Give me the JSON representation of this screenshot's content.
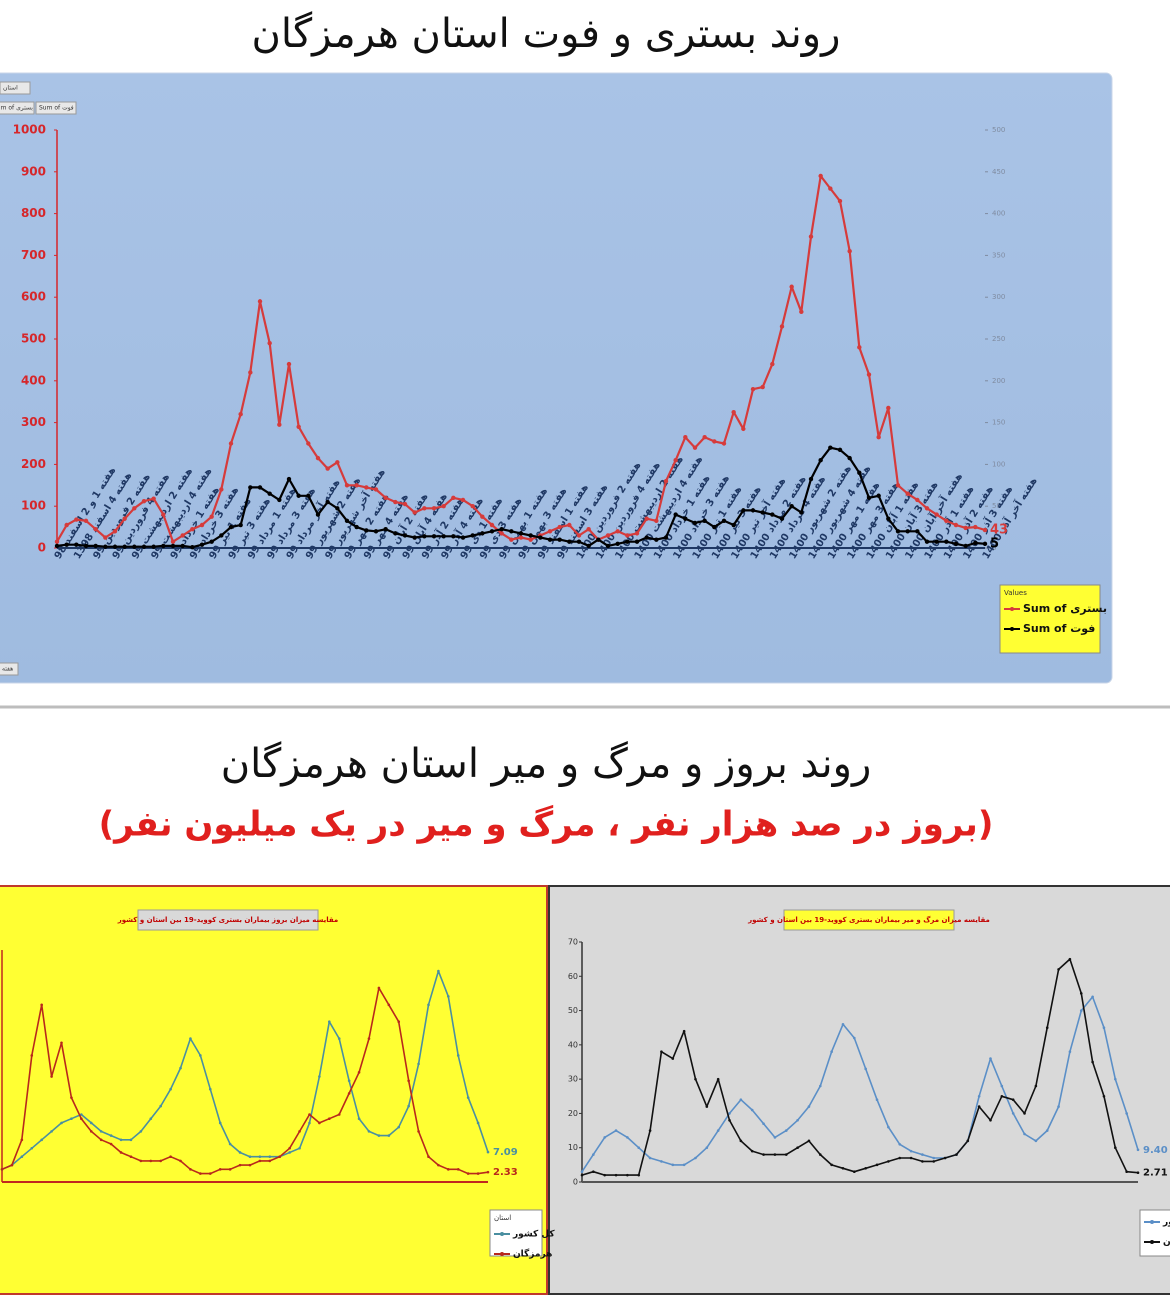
{
  "page_title": "روند بستری و فوت استان هرمزگان",
  "section_title": "روند بروز و مرگ و میر استان هرمزگان",
  "section_subtitle": "(بروز در صد هزار نفر ، مرگ و میر در یک میلیون نفر)",
  "chart_data": [
    {
      "type": "line",
      "filter_labels": [
        "استان",
        "Sum of بستری",
        "Sum of فوت"
      ],
      "axis_field": "هفته",
      "legend_title": "Values",
      "legend": "right",
      "categories": [
        "هفته 1 و 2 اسفند 98",
        null,
        "هفته 4 اسفند 1398",
        null,
        "هفته 2 فروردین 99",
        null,
        "هفته 4 فروردین 99",
        null,
        "هفته 2 اردیبهشت 99",
        null,
        "هفته 4 اردیبهشت 99",
        null,
        "هفته 1 خرداد 99",
        null,
        "هفته 3 خرداد 99",
        null,
        "هفته 1 تیر 99",
        null,
        "هفته 3 تیر 99",
        null,
        "هفته 1 مرداد 99",
        null,
        "هفته 3 مرداد 99",
        null,
        "هفته آخر مرداد 99",
        null,
        "هفته 2 شهریور 99",
        null,
        "هفته آخر شهریور 99",
        null,
        "هفته 2 مهر 99",
        null,
        "هفته 4 مهر 99",
        null,
        "هفته 2 آبان 99",
        null,
        "هفته 4 آبان 99",
        null,
        "هفته 2 آذر 99",
        null,
        "هفته 4 آذر 99",
        null,
        "هفته 1 دی 99",
        null,
        "هفته 3 دی 99",
        null,
        "هفته 1 بهمن 99",
        null,
        "هفته 3 بهمن 99",
        null,
        "هفته 1 اسفند 99",
        null,
        "هفته 3 اسفند 99",
        null,
        "هفته 2 فروردین 1400",
        null,
        "هفته 4 فروردین 1400",
        null,
        "هفته 2 اردیبهشت 1400",
        null,
        "هفته 4 اردیبهشت 1400",
        null,
        "هفته 1 خرداد 1400",
        null,
        "هفته 3 خرداد 1400",
        null,
        "هفته 1 تیر 1400",
        null,
        "هفته 3 تیر 1400",
        null,
        "هفته آخر تیر 1400",
        null,
        "هفته 2 مرداد 1400",
        null,
        "هفته 4 مرداد 1400",
        null,
        "هفته 2 شهریور 1400",
        null,
        "هفته 4 شهریور 1400",
        null,
        "هفته 1 مهر 1400",
        null,
        "هفته 3 مهر 1400",
        null,
        "هفته 1 آبان 1400",
        null,
        "هفته 3 آبان 1400",
        null,
        "هفته آخر آبان 1400",
        null,
        "هفته 1 آذر 1400",
        null,
        "هفته 2 آذر 1400",
        null,
        "هفته 3 آذر 1400",
        null,
        "هفته آخر آذر 1400"
      ],
      "series": [
        {
          "name": "Sum of بستری",
          "color": "#d63b3b",
          "values": [
            15,
            55,
            68,
            65,
            45,
            25,
            40,
            70,
            95,
            112,
            118,
            80,
            15,
            30,
            45,
            55,
            75,
            140,
            250,
            320,
            420,
            590,
            490,
            295,
            440,
            290,
            250,
            215,
            190,
            205,
            150,
            150,
            145,
            140,
            120,
            110,
            105,
            85,
            95,
            95,
            100,
            120,
            115,
            100,
            75,
            55,
            35,
            20,
            25,
            20,
            30,
            40,
            50,
            55,
            30,
            45,
            20,
            30,
            40,
            30,
            35,
            70,
            65,
            160,
            210,
            265,
            240,
            265,
            255,
            250,
            325,
            285,
            380,
            385,
            440,
            530,
            625,
            565,
            745,
            890,
            860,
            830,
            710,
            480,
            415,
            265,
            335,
            150,
            130,
            115,
            95,
            80,
            65,
            55,
            48,
            50,
            43
          ]
        },
        {
          "name": "Sum of فوت",
          "color": "#000000",
          "axis": "y2",
          "values": [
            2.5,
            4,
            4,
            2.5,
            2.5,
            1.5,
            1.5,
            1.5,
            1.5,
            1.5,
            1.5,
            2.5,
            2.5,
            2.5,
            1,
            4,
            7.5,
            15,
            25,
            27.5,
            72.5,
            72.5,
            65,
            57.5,
            82.5,
            62.5,
            62.5,
            40,
            55,
            47.5,
            32.5,
            25,
            21,
            20,
            22.5,
            17.5,
            15,
            12.5,
            14,
            14,
            14,
            14,
            12.5,
            15,
            17.5,
            20,
            22.5,
            20,
            17.5,
            15,
            12.5,
            10,
            10,
            7.5,
            7.5,
            2.5,
            10,
            2.5,
            5,
            7.5,
            7.5,
            12.5,
            10,
            12.5,
            40,
            35,
            30,
            32.5,
            25,
            32.5,
            27.5,
            45,
            45,
            42.5,
            40,
            35,
            50,
            42.5,
            82.5,
            105,
            120,
            117.5,
            107.5,
            90,
            60,
            62.5,
            35,
            20,
            20,
            20,
            7.5,
            7.5,
            7.5,
            5,
            2.5,
            6,
            5
          ]
        }
      ],
      "ylim": [
        0,
        1000
      ],
      "yticks": [
        0,
        100,
        200,
        300,
        400,
        500,
        600,
        700,
        800,
        900,
        1000
      ],
      "y2lim": [
        0,
        500
      ],
      "y2ticks": [
        0,
        50,
        100,
        150,
        200,
        250,
        300,
        350,
        400,
        450,
        500
      ]
    },
    {
      "type": "line",
      "title": "مقایسه میزان بروز بیماران بستری کووید-19 بین استان و کشور",
      "legend_title": "استان",
      "legend": "lower right",
      "series": [
        {
          "name": "کل کشور",
          "color": "#4a8fa0",
          "values": [
            3,
            4,
            6,
            8,
            10,
            12,
            14,
            15,
            16,
            14,
            12,
            11,
            10,
            10,
            12,
            15,
            18,
            22,
            27,
            34,
            30,
            22,
            14,
            9,
            7,
            6,
            6,
            6,
            6,
            7,
            8,
            14,
            25,
            38,
            34,
            24,
            15,
            12,
            11,
            11,
            13,
            18,
            28,
            42,
            50,
            44,
            30,
            20,
            14,
            7.09
          ]
        },
        {
          "name": "هرمزگان",
          "color": "#b8281c",
          "values": [
            3,
            4,
            10,
            30,
            42,
            25,
            33,
            20,
            15,
            12,
            10,
            9,
            7,
            6,
            5,
            5,
            5,
            6,
            5,
            3,
            2,
            2,
            3,
            3,
            4,
            4,
            5,
            5,
            6,
            8,
            12,
            16,
            14,
            15,
            16,
            21,
            26,
            34,
            46,
            42,
            38,
            24,
            12,
            6,
            4,
            3,
            3,
            2,
            2,
            2.33
          ]
        }
      ],
      "ylim": [
        0,
        55
      ]
    },
    {
      "type": "line",
      "title": "مقایسه میزان مرگ و میر بیماران بستری کووید-19 بین استان و کشور",
      "legend": "lower right",
      "series": [
        {
          "name": "کشور",
          "color": "#5b8fc7",
          "values": [
            3,
            8,
            13,
            15,
            13,
            10,
            7,
            6,
            5,
            5,
            7,
            10,
            15,
            20,
            24,
            21,
            17,
            13,
            15,
            18,
            22,
            28,
            38,
            46,
            42,
            33,
            24,
            16,
            11,
            9,
            8,
            7,
            7,
            8,
            12,
            25,
            36,
            28,
            20,
            14,
            12,
            15,
            22,
            38,
            50,
            54,
            45,
            30,
            20,
            9.4
          ],
          "value_labels": [
            null,
            null,
            null,
            null,
            null,
            null,
            null,
            null,
            null,
            null,
            null,
            null,
            null,
            null,
            null,
            null,
            null,
            null,
            null,
            null,
            null,
            null,
            null,
            null,
            null,
            null,
            null,
            null,
            null,
            null,
            null,
            null,
            null,
            null,
            null,
            null,
            null,
            null,
            null,
            null,
            null,
            null,
            null,
            null,
            null,
            null,
            null,
            null,
            null,
            "9.40"
          ]
        },
        {
          "name": "هرمزگان",
          "color": "#111111",
          "values": [
            2,
            3,
            2,
            2,
            2,
            2,
            15,
            38,
            36,
            44,
            30,
            22,
            30,
            18,
            12,
            9,
            8,
            8,
            8,
            10,
            12,
            8,
            5,
            4,
            3,
            4,
            5,
            6,
            7,
            7,
            6,
            6,
            7,
            8,
            12,
            22,
            18,
            25,
            24,
            20,
            28,
            45,
            62,
            65,
            55,
            35,
            25,
            10,
            3,
            2.71
          ]
        }
      ],
      "ylim": [
        0,
        70
      ],
      "yticks": [
        0,
        10,
        20,
        30,
        40,
        50,
        60,
        70
      ]
    }
  ]
}
